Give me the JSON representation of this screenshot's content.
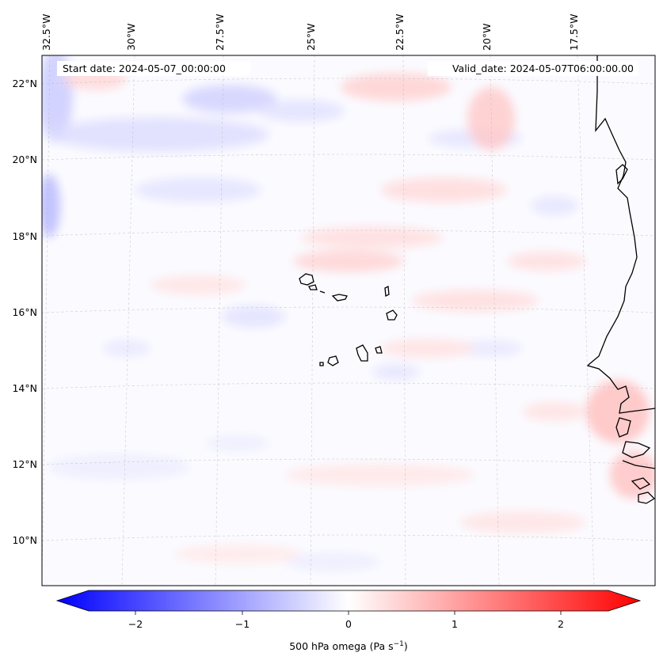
{
  "map": {
    "header_left": "Start date: 2024-05-07_00:00:00",
    "header_right": "Valid_date: 2024-05-07T06:00:00.00",
    "lon_labels": [
      "32.5°W",
      "30°W",
      "27.5°W",
      "25°W",
      "22.5°W",
      "20°W",
      "17.5°W"
    ],
    "lat_labels": [
      "22°N",
      "20°N",
      "18°N",
      "16°N",
      "14°N",
      "12°N",
      "10°N"
    ],
    "gridlines": true,
    "coastlines": true
  },
  "colorbar": {
    "label": "500 hPa omega (Pa s",
    "label_exp": "−1",
    "label_close": ")",
    "ticks": [
      "−2",
      "−1",
      "0",
      "1",
      "2"
    ],
    "range": [
      -2.6,
      2.6
    ],
    "colormap": "bwr",
    "colors": {
      "negative": "#0000ff",
      "zero": "#ffffff",
      "positive": "#ff0000"
    }
  }
}
